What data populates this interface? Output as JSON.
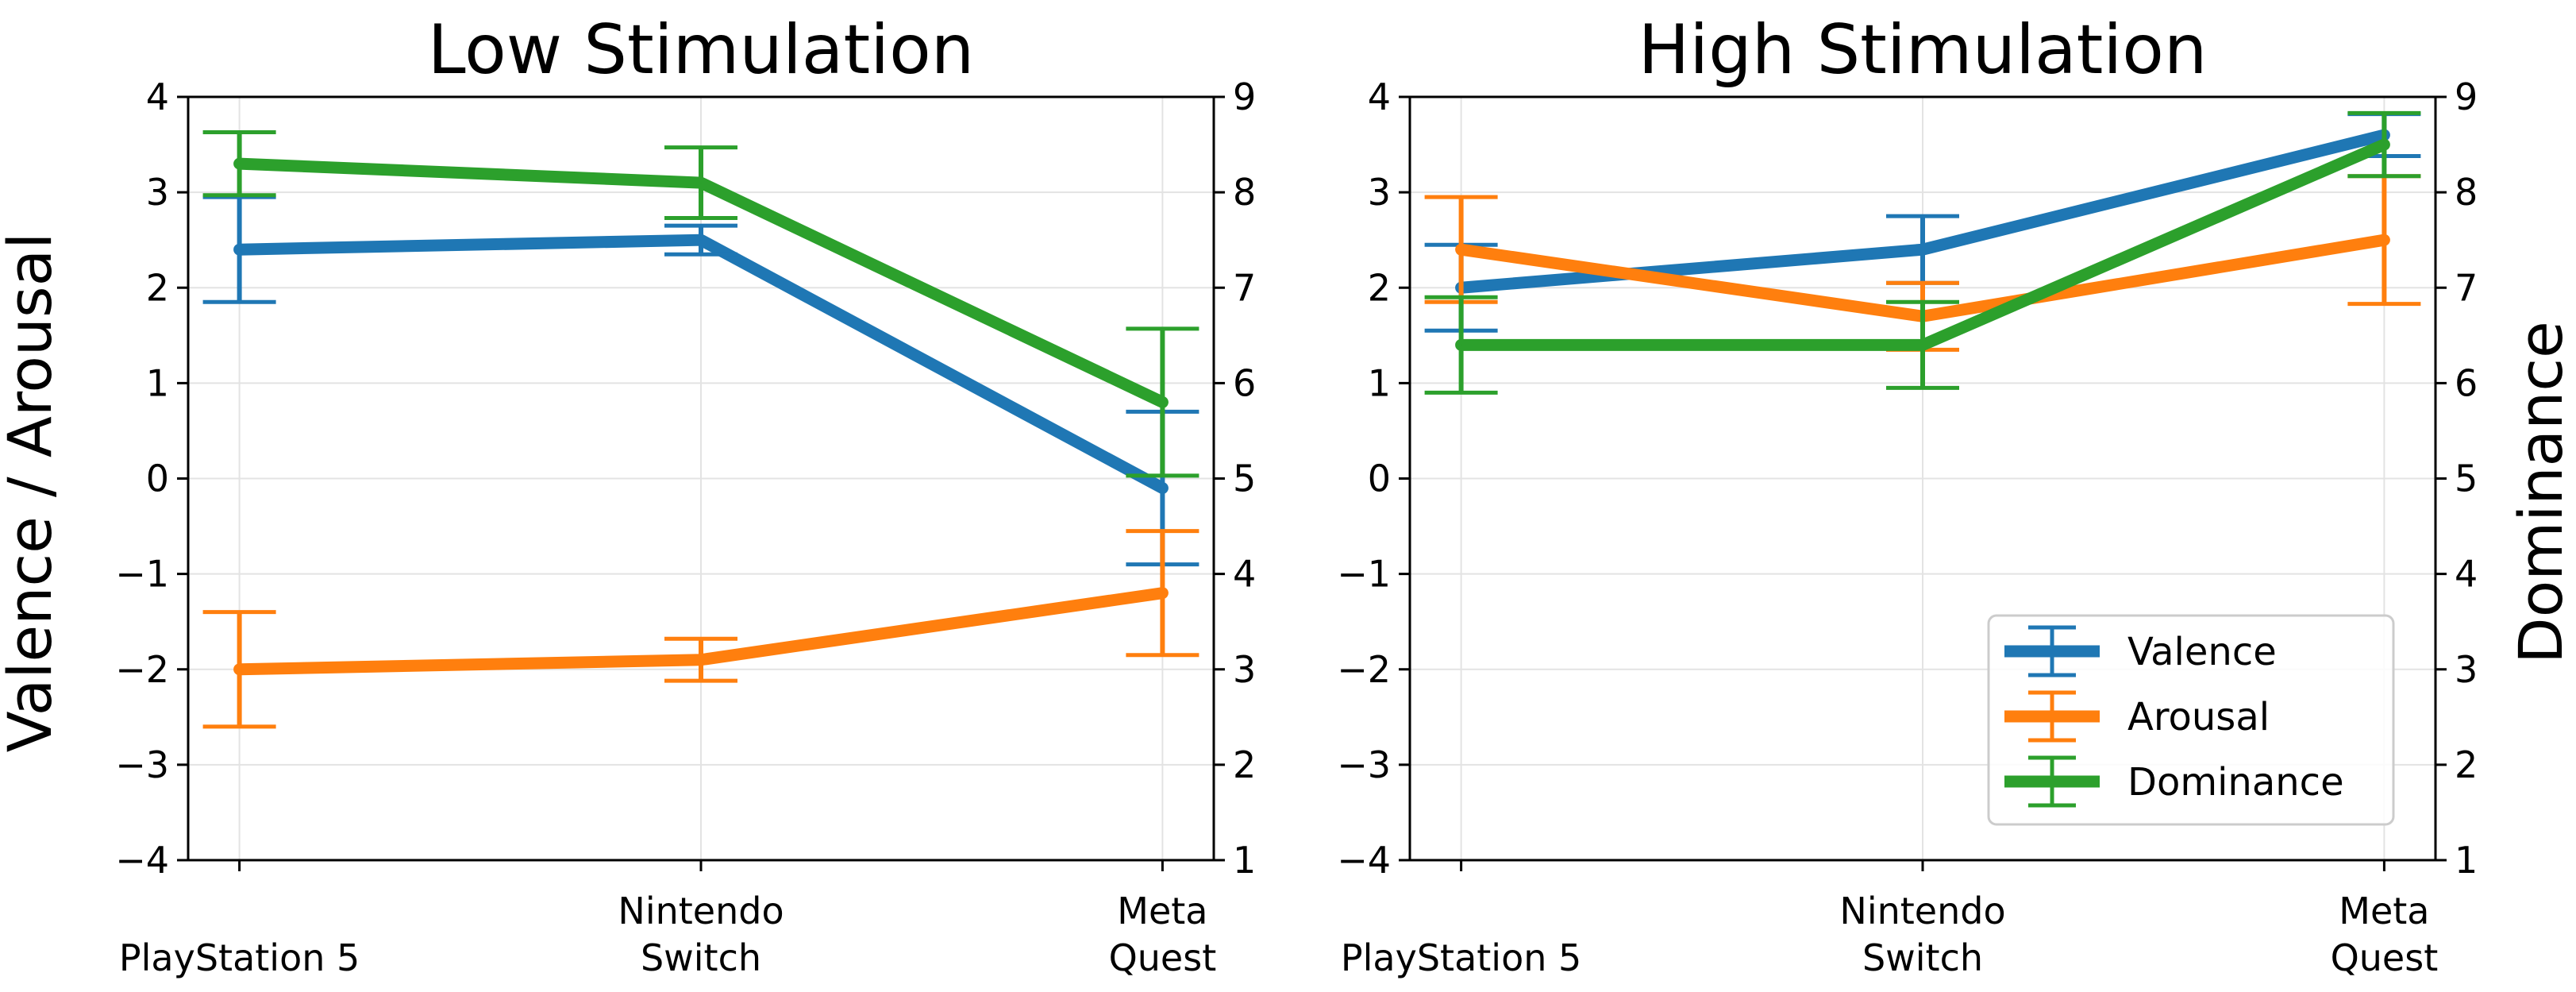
{
  "figure": {
    "left_ylabel": "Valence / Arousal",
    "right_ylabel": "Dominance"
  },
  "legend": {
    "location": "lower-right",
    "entries": [
      {
        "label": "Valence",
        "color": "#1f77b4"
      },
      {
        "label": "Arousal",
        "color": "#ff7f0e"
      },
      {
        "label": "Dominance",
        "color": "#2ca02c"
      }
    ]
  },
  "chart_data": [
    {
      "type": "line",
      "title": "Low Stimulation",
      "categories": [
        [
          "PlayStation 5"
        ],
        [
          "Nintendo",
          "Switch"
        ],
        [
          "Meta",
          "Quest"
        ]
      ],
      "ylim": [
        -4,
        4
      ],
      "y2lim": [
        1,
        9
      ],
      "yticks": [
        "−4",
        "−3",
        "−2",
        "−1",
        "0",
        "1",
        "2",
        "3",
        "4"
      ],
      "y2ticks": [
        "1",
        "2",
        "3",
        "4",
        "5",
        "6",
        "7",
        "8",
        "9"
      ],
      "grid": true,
      "series": [
        {
          "name": "Valence",
          "axis": "left",
          "color": "#1f77b4",
          "values": [
            2.4,
            2.5,
            -0.1
          ],
          "errors": [
            0.55,
            0.15,
            0.8
          ]
        },
        {
          "name": "Arousal",
          "axis": "left",
          "color": "#ff7f0e",
          "values": [
            -2.0,
            -1.9,
            -1.2
          ],
          "errors": [
            0.6,
            0.22,
            0.65
          ]
        },
        {
          "name": "Dominance",
          "axis": "right",
          "color": "#2ca02c",
          "values": [
            8.3,
            8.1,
            5.8
          ],
          "errors": [
            0.33,
            0.37,
            0.77
          ]
        }
      ]
    },
    {
      "type": "line",
      "title": "High Stimulation",
      "categories": [
        [
          "PlayStation 5"
        ],
        [
          "Nintendo",
          "Switch"
        ],
        [
          "Meta",
          "Quest"
        ]
      ],
      "ylim": [
        -4,
        4
      ],
      "y2lim": [
        1,
        9
      ],
      "yticks": [
        "−4",
        "−3",
        "−2",
        "−1",
        "0",
        "1",
        "2",
        "3",
        "4"
      ],
      "y2ticks": [
        "1",
        "2",
        "3",
        "4",
        "5",
        "6",
        "7",
        "8",
        "9"
      ],
      "grid": true,
      "series": [
        {
          "name": "Valence",
          "axis": "left",
          "color": "#1f77b4",
          "values": [
            2.0,
            2.4,
            3.6
          ],
          "errors": [
            0.45,
            0.35,
            0.22
          ]
        },
        {
          "name": "Arousal",
          "axis": "left",
          "color": "#ff7f0e",
          "values": [
            2.4,
            1.7,
            2.5
          ],
          "errors": [
            0.55,
            0.35,
            0.67
          ]
        },
        {
          "name": "Dominance",
          "axis": "right",
          "color": "#2ca02c",
          "values": [
            6.4,
            6.4,
            8.5
          ],
          "errors": [
            0.5,
            0.45,
            0.33
          ]
        }
      ]
    }
  ]
}
